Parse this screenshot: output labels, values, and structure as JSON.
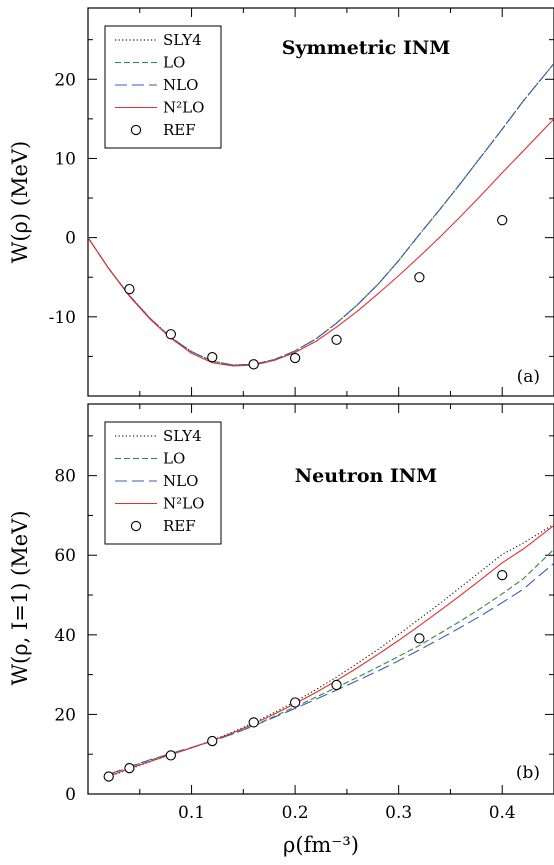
{
  "chart_data": [
    {
      "type": "line",
      "panel_label": "(a)",
      "title": "Symmetric INM",
      "ylabel": "W(ρ) (MeV)",
      "xlabel": "",
      "xlim": [
        0,
        0.45
      ],
      "ylim": [
        -20,
        29
      ],
      "xticks": [
        0.1,
        0.2,
        0.3,
        0.4
      ],
      "yticks": [
        -10,
        0,
        10,
        20
      ],
      "ytick_labels": [
        "-10",
        "0",
        "10",
        "20"
      ],
      "legend_position": "top-left",
      "series": [
        {
          "name": "SLY4",
          "style": "dotted",
          "color": "#222222",
          "x": [
            0,
            0.02,
            0.04,
            0.06,
            0.08,
            0.1,
            0.12,
            0.14,
            0.16,
            0.18,
            0.2,
            0.22,
            0.24,
            0.26,
            0.28,
            0.3,
            0.32,
            0.34,
            0.36,
            0.38,
            0.4,
            0.42,
            0.45
          ],
          "y": [
            0,
            -3.9,
            -7.3,
            -10.2,
            -12.6,
            -14.4,
            -15.6,
            -16.1,
            -16.0,
            -15.4,
            -14.3,
            -12.8,
            -10.8,
            -8.5,
            -5.9,
            -2.9,
            0.4,
            3.6,
            6.9,
            10.3,
            13.7,
            17.2,
            22.0
          ]
        },
        {
          "name": "LO",
          "style": "dashed",
          "color": "#2e8b3a",
          "x": [
            0,
            0.02,
            0.04,
            0.06,
            0.08,
            0.1,
            0.12,
            0.14,
            0.16,
            0.18,
            0.2,
            0.22,
            0.24,
            0.26,
            0.28,
            0.3,
            0.32,
            0.34,
            0.36,
            0.38,
            0.4,
            0.42,
            0.45
          ],
          "y": [
            0,
            -3.9,
            -7.3,
            -10.2,
            -12.6,
            -14.4,
            -15.6,
            -16.1,
            -16.0,
            -15.4,
            -14.3,
            -12.8,
            -10.8,
            -8.5,
            -5.9,
            -2.9,
            0.4,
            3.6,
            6.9,
            10.3,
            13.7,
            17.2,
            22.0
          ]
        },
        {
          "name": "NLO",
          "style": "longdash",
          "color": "#3b5eb8",
          "x": [
            0,
            0.02,
            0.04,
            0.06,
            0.08,
            0.1,
            0.12,
            0.14,
            0.16,
            0.18,
            0.2,
            0.22,
            0.24,
            0.26,
            0.28,
            0.3,
            0.32,
            0.34,
            0.36,
            0.38,
            0.4,
            0.42,
            0.45
          ],
          "y": [
            0,
            -3.9,
            -7.3,
            -10.2,
            -12.6,
            -14.4,
            -15.6,
            -16.1,
            -16.0,
            -15.4,
            -14.3,
            -12.8,
            -10.8,
            -8.5,
            -5.9,
            -2.9,
            0.4,
            3.6,
            6.9,
            10.3,
            13.7,
            17.2,
            22.0
          ]
        },
        {
          "name": "N²LO",
          "style": "solid",
          "color": "#e03030",
          "x": [
            0,
            0.02,
            0.04,
            0.06,
            0.08,
            0.1,
            0.12,
            0.14,
            0.16,
            0.18,
            0.2,
            0.22,
            0.24,
            0.26,
            0.28,
            0.3,
            0.32,
            0.34,
            0.36,
            0.38,
            0.4,
            0.42,
            0.45
          ],
          "y": [
            0,
            -3.9,
            -7.4,
            -10.3,
            -12.7,
            -14.6,
            -15.8,
            -16.2,
            -16.1,
            -15.5,
            -14.5,
            -13.1,
            -11.3,
            -9.3,
            -7.1,
            -4.8,
            -2.4,
            0.1,
            2.7,
            5.4,
            8.2,
            10.9,
            15.0
          ]
        },
        {
          "name": "REF",
          "style": "marker",
          "x": [
            0.04,
            0.08,
            0.12,
            0.16,
            0.2,
            0.24,
            0.32,
            0.4
          ],
          "y": [
            -6.5,
            -12.2,
            -15.1,
            -16.0,
            -15.2,
            -12.9,
            -5.0,
            2.2
          ]
        }
      ]
    },
    {
      "type": "line",
      "panel_label": "(b)",
      "title": "Neutron INM",
      "ylabel": "W(ρ, I=1) (MeV)",
      "xlabel": "ρ(fm⁻³)",
      "xlim": [
        0,
        0.45
      ],
      "ylim": [
        0,
        98
      ],
      "xticks": [
        0.1,
        0.2,
        0.3,
        0.4
      ],
      "xtick_labels": [
        "0.1",
        "0.2",
        "0.3",
        "0.4"
      ],
      "yticks": [
        0,
        20,
        40,
        60,
        80
      ],
      "ytick_labels": [
        "0",
        "20",
        "40",
        "60",
        "80"
      ],
      "legend_position": "top-left",
      "series": [
        {
          "name": "SLY4",
          "style": "dotted",
          "color": "#222222",
          "x": [
            0.02,
            0.04,
            0.06,
            0.08,
            0.1,
            0.12,
            0.14,
            0.16,
            0.18,
            0.2,
            0.22,
            0.24,
            0.26,
            0.28,
            0.3,
            0.32,
            0.34,
            0.36,
            0.38,
            0.4,
            0.42,
            0.45
          ],
          "y": [
            4.3,
            6.3,
            8.1,
            9.9,
            11.6,
            13.5,
            15.6,
            17.9,
            20.5,
            23.2,
            26.2,
            29.4,
            32.8,
            36.3,
            40.1,
            44.0,
            47.9,
            52.0,
            56.1,
            60.2,
            63.0,
            67.8
          ]
        },
        {
          "name": "LO",
          "style": "dashed",
          "color": "#2e8b3a",
          "x": [
            0.02,
            0.04,
            0.06,
            0.08,
            0.1,
            0.12,
            0.14,
            0.16,
            0.18,
            0.2,
            0.22,
            0.24,
            0.26,
            0.28,
            0.3,
            0.32,
            0.34,
            0.36,
            0.38,
            0.4,
            0.42,
            0.45
          ],
          "y": [
            4.8,
            6.8,
            8.5,
            10.1,
            11.6,
            13.3,
            15.1,
            17.2,
            19.5,
            21.9,
            24.3,
            26.8,
            29.3,
            31.9,
            34.6,
            37.3,
            40.4,
            43.5,
            46.8,
            50.3,
            54.0,
            61.5
          ]
        },
        {
          "name": "NLO",
          "style": "longdash",
          "color": "#3b5eb8",
          "x": [
            0.02,
            0.04,
            0.06,
            0.08,
            0.1,
            0.12,
            0.14,
            0.16,
            0.18,
            0.2,
            0.22,
            0.24,
            0.26,
            0.28,
            0.3,
            0.32,
            0.34,
            0.36,
            0.38,
            0.4,
            0.42,
            0.45
          ],
          "y": [
            4.9,
            6.9,
            8.6,
            10.2,
            11.7,
            13.3,
            15.1,
            17.1,
            19.3,
            21.5,
            23.8,
            26.1,
            28.5,
            30.9,
            33.5,
            36.2,
            39.0,
            41.9,
            44.9,
            48.1,
            51.4,
            58.0
          ]
        },
        {
          "name": "N²LO",
          "style": "solid",
          "color": "#e03030",
          "x": [
            0.02,
            0.04,
            0.06,
            0.08,
            0.1,
            0.12,
            0.14,
            0.16,
            0.18,
            0.2,
            0.22,
            0.24,
            0.26,
            0.28,
            0.3,
            0.32,
            0.34,
            0.36,
            0.38,
            0.4,
            0.42,
            0.45
          ],
          "y": [
            4.5,
            6.4,
            8.2,
            9.9,
            11.6,
            13.4,
            15.4,
            17.6,
            20.1,
            22.7,
            25.5,
            28.5,
            31.7,
            35.1,
            38.6,
            42.3,
            46.1,
            50.0,
            54.0,
            58.1,
            61.5,
            67.5
          ]
        },
        {
          "name": "REF",
          "style": "marker",
          "x": [
            0.02,
            0.04,
            0.08,
            0.12,
            0.16,
            0.2,
            0.24,
            0.32,
            0.4
          ],
          "y": [
            4.4,
            6.5,
            9.7,
            13.3,
            18.0,
            23.0,
            27.4,
            39.1,
            55.0
          ]
        }
      ]
    }
  ]
}
